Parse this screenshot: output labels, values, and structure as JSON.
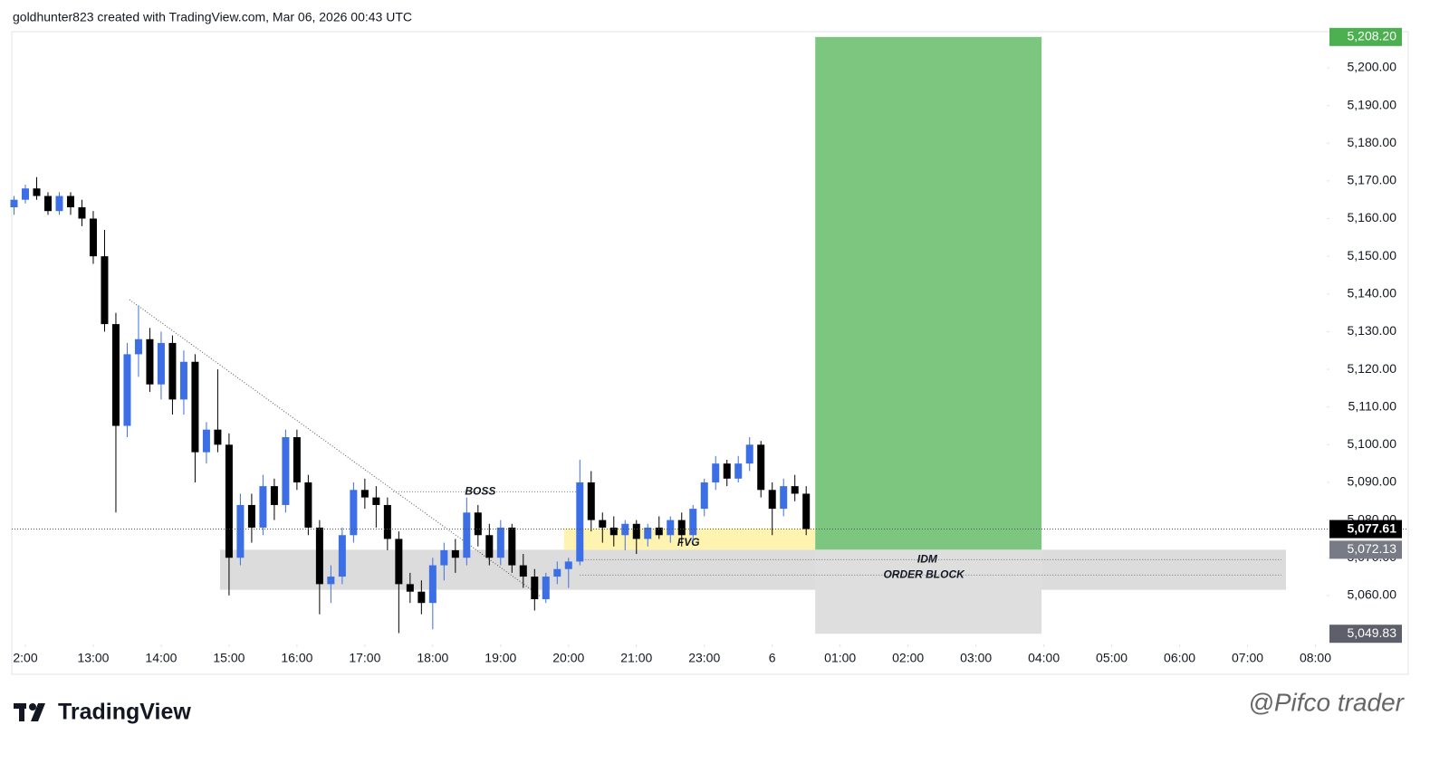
{
  "header": {
    "text": "goldhunter823 created with TradingView.com, Mar 06, 2026 00:43 UTC"
  },
  "footer": {
    "logo": "TradingView",
    "watermark": "@Pifco trader"
  },
  "chart_data": {
    "type": "candlestick",
    "bull_color": "#3c6ee6",
    "bear_color": "#000000",
    "grid": false,
    "xlim": [
      -0.2,
      116
    ],
    "ylim": [
      5047,
      5209.6
    ],
    "xticks": [
      {
        "value": 1,
        "label": "2:00"
      },
      {
        "value": 7,
        "label": "13:00"
      },
      {
        "value": 13,
        "label": "14:00"
      },
      {
        "value": 19,
        "label": "15:00"
      },
      {
        "value": 25,
        "label": "16:00"
      },
      {
        "value": 31,
        "label": "17:00"
      },
      {
        "value": 37,
        "label": "18:00"
      },
      {
        "value": 43,
        "label": "19:00"
      },
      {
        "value": 49,
        "label": "20:00"
      },
      {
        "value": 55,
        "label": "21:00"
      },
      {
        "value": 61,
        "label": "23:00"
      },
      {
        "value": 67,
        "label": "6"
      },
      {
        "value": 73,
        "label": "01:00"
      },
      {
        "value": 79,
        "label": "02:00"
      },
      {
        "value": 85,
        "label": "03:00"
      },
      {
        "value": 91,
        "label": "04:00"
      },
      {
        "value": 97,
        "label": "05:00"
      },
      {
        "value": 103,
        "label": "06:00"
      },
      {
        "value": 109,
        "label": "07:00"
      },
      {
        "value": 115,
        "label": "08:00"
      }
    ],
    "yticks": [
      {
        "value": 5060,
        "label": "5,060.00"
      },
      {
        "value": 5070,
        "label": "5,070.00"
      },
      {
        "value": 5080,
        "label": "5,080.00"
      },
      {
        "value": 5090,
        "label": "5,090.00"
      },
      {
        "value": 5100,
        "label": "5,100.00"
      },
      {
        "value": 5110,
        "label": "5,110.00"
      },
      {
        "value": 5120,
        "label": "5,120.00"
      },
      {
        "value": 5130,
        "label": "5,130.00"
      },
      {
        "value": 5140,
        "label": "5,140.00"
      },
      {
        "value": 5150,
        "label": "5,150.00"
      },
      {
        "value": 5160,
        "label": "5,160.00"
      },
      {
        "value": 5170,
        "label": "5,170.00"
      },
      {
        "value": 5180,
        "label": "5,180.00"
      },
      {
        "value": 5190,
        "label": "5,190.00"
      },
      {
        "value": 5200,
        "label": "5,200.00"
      }
    ],
    "open": [
      5163,
      5165,
      5168,
      5166,
      5162,
      5166,
      5163,
      5160,
      5150,
      5132,
      5105,
      5124,
      5128,
      5116,
      5127,
      5112,
      5122,
      5098,
      5104,
      5100,
      5070,
      5084,
      5078,
      5089,
      5084,
      5102,
      5090,
      5078,
      5063,
      5065,
      5076,
      5088,
      5086,
      5084,
      5075,
      5063,
      5061,
      5058,
      5068,
      5072,
      5070,
      5082,
      5076,
      5070,
      5078,
      5068,
      5065,
      5059,
      5065,
      5067,
      5069,
      5090,
      5080,
      5078,
      5076,
      5079,
      5075,
      5078,
      5076,
      5080,
      5076,
      5083,
      5090,
      5095,
      5091,
      5095,
      5100,
      5088,
      5083,
      5089,
      5087
    ],
    "high": [
      5166,
      5169,
      5171,
      5167,
      5167,
      5167,
      5165,
      5162,
      5157,
      5135,
      5127,
      5137,
      5131,
      5130,
      5129,
      5125,
      5124,
      5106,
      5120,
      5103,
      5087,
      5087,
      5092,
      5091,
      5104,
      5104,
      5092,
      5080,
      5068,
      5078,
      5090,
      5091,
      5089,
      5086,
      5077,
      5066,
      5064,
      5070,
      5074,
      5075,
      5086,
      5084,
      5079,
      5080,
      5079,
      5071,
      5067,
      5066,
      5069,
      5070,
      5096,
      5093,
      5082,
      5081,
      5080,
      5080,
      5079,
      5081,
      5081,
      5082,
      5084,
      5091,
      5097,
      5096,
      5097,
      5102,
      5101,
      5090,
      5091,
      5092,
      5089
    ],
    "low": [
      5161,
      5164,
      5165,
      5161,
      5161,
      5161,
      5158,
      5148,
      5130,
      5082,
      5102,
      5118,
      5114,
      5112,
      5108,
      5108,
      5090,
      5095,
      5098,
      5060,
      5068,
      5074,
      5076,
      5080,
      5082,
      5088,
      5076,
      5055,
      5058,
      5063,
      5074,
      5083,
      5078,
      5072,
      5050,
      5058,
      5055,
      5051,
      5064,
      5066,
      5068,
      5073,
      5068,
      5068,
      5066,
      5062,
      5056,
      5058,
      5063,
      5062,
      5068,
      5077,
      5074,
      5073,
      5072,
      5071,
      5073,
      5075,
      5074,
      5073,
      5074,
      5081,
      5088,
      5089,
      5090,
      5093,
      5086,
      5076,
      5081,
      5085,
      5076
    ],
    "close": [
      5165,
      5168,
      5166,
      5162,
      5166,
      5163,
      5160,
      5150,
      5132,
      5105,
      5124,
      5128,
      5116,
      5127,
      5112,
      5122,
      5098,
      5104,
      5100,
      5070,
      5084,
      5078,
      5089,
      5084,
      5102,
      5090,
      5078,
      5063,
      5065,
      5076,
      5088,
      5086,
      5084,
      5075,
      5063,
      5061,
      5058,
      5068,
      5072,
      5070,
      5082,
      5076,
      5070,
      5078,
      5068,
      5065,
      5059,
      5065,
      5067,
      5069,
      5090,
      5080,
      5078,
      5076,
      5079,
      5075,
      5078,
      5076,
      5080,
      5076,
      5083,
      5090,
      5095,
      5091,
      5095,
      5100,
      5088,
      5083,
      5089,
      5087,
      5077.61
    ],
    "levels": [
      {
        "value": 5208.2,
        "label": "5,208.20",
        "color": "#4caf50"
      },
      {
        "value": 5077.61,
        "label": "5,077.61",
        "color": "#000000"
      },
      {
        "value": 5072.13,
        "label": "5,072.13",
        "color": "#787b86"
      },
      {
        "value": 5049.83,
        "label": "5,049.83",
        "color": "#5d606b"
      }
    ],
    "zones": [
      {
        "x0": 18.2,
        "x1": 112.4,
        "y0": 5061.5,
        "y1": 5072.13,
        "color": "#dcdcdc"
      },
      {
        "x0": 48.6,
        "x1": 70.8,
        "y0": 5072.13,
        "y1": 5077.8,
        "color": "#fff3b0"
      },
      {
        "x0": 70.8,
        "x1": 90.8,
        "y0": 5072.13,
        "y1": 5208.2,
        "color": "#7dc67f"
      },
      {
        "x0": 70.8,
        "x1": 90.8,
        "y0": 5049.83,
        "y1": 5072.13,
        "color": "#dedede"
      }
    ],
    "trendline": {
      "x": [
        10.2,
        46.6
      ],
      "y": [
        5138.5,
        5059.6
      ]
    },
    "annotations": [
      {
        "text": "BOSS",
        "x": 41.2,
        "y": 5087.5,
        "line": [
          33.5,
          50
        ]
      },
      {
        "text": "FVG",
        "x": 59.6,
        "y": 5074
      },
      {
        "text": "IDM",
        "x": 80.7,
        "y": 5069.5,
        "line": [
          50,
          112
        ]
      },
      {
        "text": "ORDER BLOCK",
        "x": 80.4,
        "y": 5065.4,
        "line": [
          50,
          112
        ]
      }
    ]
  }
}
